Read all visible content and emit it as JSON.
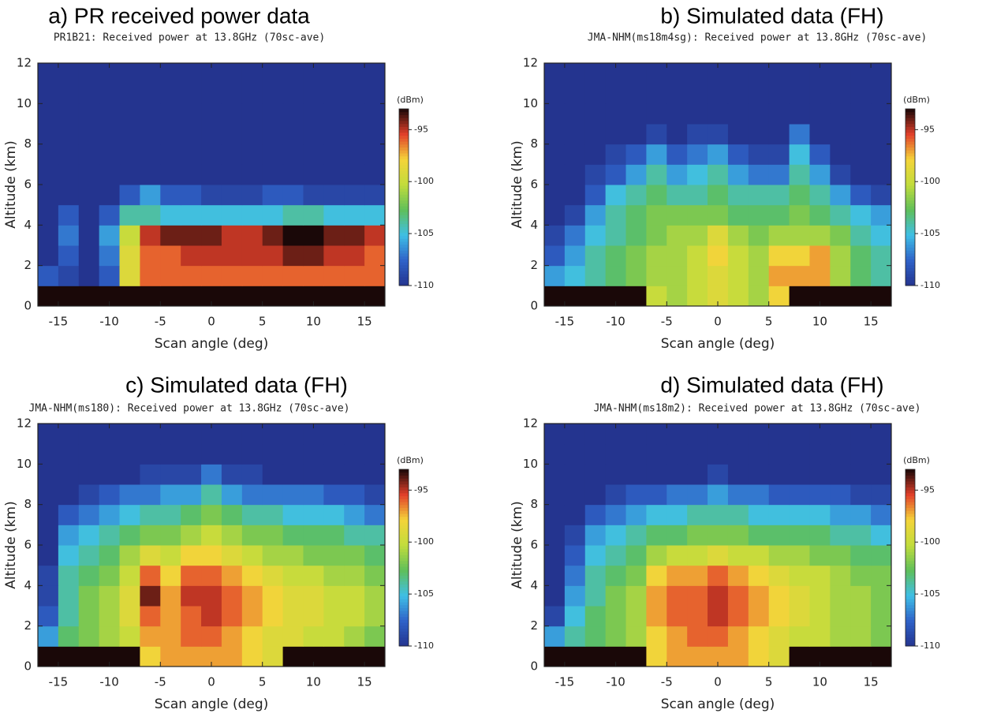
{
  "chart_data": [
    {
      "type": "heatmap",
      "title": "a) PR received power data",
      "subtitle": "PR1B21: Received power at 13.8GHz (70sc-ave)",
      "xlabel": "Scan angle (deg)",
      "ylabel": "Altitude (km)",
      "colorbar_label": "(dBm)",
      "xlim": [
        -17,
        17
      ],
      "xticks": [
        -15,
        -10,
        -5,
        0,
        5,
        10,
        15
      ],
      "ylim": [
        0,
        12
      ],
      "yticks": [
        0,
        2,
        4,
        6,
        8,
        10,
        12
      ],
      "clim": [
        -110,
        -93
      ],
      "cticks": [
        -110,
        -105,
        -100,
        -95
      ],
      "colormap": [
        "#24348f",
        "#2f62c8",
        "#3fbfe6",
        "#5fbf5a",
        "#c2dc3c",
        "#f4d43a",
        "#e2402a",
        "#1a0808"
      ],
      "x_edges": [
        -17,
        -15,
        -13,
        -11,
        -9,
        -7,
        -5,
        -3,
        -1,
        1,
        3,
        5,
        7,
        9,
        11,
        13,
        15,
        17
      ],
      "y_edges": [
        0,
        1,
        2,
        3,
        4,
        5,
        6,
        7,
        8,
        9,
        10,
        11,
        12
      ],
      "z": [
        [
          -92,
          -92,
          -92,
          -92,
          -92,
          -92,
          -92,
          -92,
          -92,
          -92,
          -92,
          -92,
          -92,
          -92,
          -92,
          -92,
          -92
        ],
        [
          -108,
          -109,
          -110,
          -108,
          -99,
          -96,
          -96,
          -96,
          -96,
          -96,
          -96,
          -96,
          -96,
          -96,
          -96,
          -96,
          -96
        ],
        [
          -110,
          -108,
          -110,
          -107,
          -99,
          -96,
          -96,
          -95,
          -95,
          -95,
          -95,
          -95,
          -94,
          -94,
          -95,
          -95,
          -96
        ],
        [
          -110,
          -107,
          -110,
          -106,
          -100,
          -95,
          -94,
          -94,
          -94,
          -95,
          -95,
          -94,
          -93,
          -93,
          -94,
          -94,
          -95
        ],
        [
          -111,
          -108,
          -111,
          -108,
          -104,
          -104,
          -105,
          -105,
          -105,
          -105,
          -105,
          -105,
          -104,
          -104,
          -105,
          -105,
          -105
        ],
        [
          -111,
          -111,
          -111,
          -111,
          -108,
          -106,
          -108,
          -108,
          -109,
          -109,
          -109,
          -108,
          -108,
          -109,
          -109,
          -109,
          -109
        ],
        [
          -111,
          -111,
          -111,
          -111,
          -111,
          -111,
          -111,
          -111,
          -111,
          -111,
          -111,
          -111,
          -111,
          -111,
          -111,
          -111,
          -111
        ],
        [
          -111,
          -111,
          -111,
          -111,
          -111,
          -111,
          -111,
          -111,
          -111,
          -111,
          -111,
          -111,
          -111,
          -111,
          -111,
          -111,
          -111
        ],
        [
          -111,
          -111,
          -111,
          -111,
          -111,
          -111,
          -111,
          -111,
          -111,
          -111,
          -111,
          -111,
          -111,
          -111,
          -111,
          -111,
          -111
        ],
        [
          -111,
          -111,
          -111,
          -111,
          -111,
          -111,
          -111,
          -111,
          -111,
          -111,
          -111,
          -111,
          -111,
          -111,
          -111,
          -111,
          -111
        ],
        [
          -111,
          -111,
          -111,
          -111,
          -111,
          -111,
          -111,
          -111,
          -111,
          -111,
          -111,
          -111,
          -111,
          -111,
          -111,
          -111,
          -111
        ],
        [
          -111,
          -111,
          -111,
          -111,
          -111,
          -111,
          -111,
          -111,
          -111,
          -111,
          -111,
          -111,
          -111,
          -111,
          -111,
          -111,
          -111
        ]
      ]
    },
    {
      "type": "heatmap",
      "title": "b) Simulated data (FH)",
      "subtitle": "JMA-NHM(ms18m4sg): Received power at 13.8GHz (70sc-ave)",
      "xlabel": "Scan angle (deg)",
      "ylabel": "Altitude (km)",
      "colorbar_label": "(dBm)",
      "xlim": [
        -17,
        17
      ],
      "xticks": [
        -15,
        -10,
        -5,
        0,
        5,
        10,
        15
      ],
      "ylim": [
        0,
        12
      ],
      "yticks": [
        0,
        2,
        4,
        6,
        8,
        10,
        12
      ],
      "clim": [
        -110,
        -93
      ],
      "cticks": [
        -110,
        -105,
        -100,
        -95
      ],
      "colormap": [
        "#24348f",
        "#2f62c8",
        "#3fbfe6",
        "#5fbf5a",
        "#c2dc3c",
        "#f4d43a",
        "#e2402a",
        "#1a0808"
      ],
      "x_edges": [
        -17,
        -15,
        -13,
        -11,
        -9,
        -7,
        -5,
        -3,
        -1,
        1,
        3,
        5,
        7,
        9,
        11,
        13,
        15,
        17
      ],
      "y_edges": [
        0,
        1,
        2,
        3,
        4,
        5,
        6,
        7,
        8,
        9,
        10,
        11,
        12
      ],
      "z": [
        [
          -92,
          -92,
          -92,
          -92,
          -92,
          -100,
          -101,
          -100,
          -99,
          -100,
          -101,
          -98,
          -92,
          -92,
          -92,
          -92,
          -92
        ],
        [
          -106,
          -105,
          -104,
          -103,
          -102,
          -101,
          -101,
          -100,
          -99,
          -100,
          -101,
          -97,
          -97,
          -97,
          -101,
          -103,
          -104
        ],
        [
          -108,
          -106,
          -104,
          -103,
          -102,
          -101,
          -101,
          -100,
          -98,
          -100,
          -101,
          -98,
          -98,
          -97,
          -101,
          -103,
          -104
        ],
        [
          -109,
          -107,
          -105,
          -104,
          -103,
          -102,
          -101,
          -101,
          -99,
          -101,
          -102,
          -101,
          -101,
          -101,
          -102,
          -104,
          -105
        ],
        [
          -110,
          -109,
          -106,
          -104,
          -103,
          -102,
          -102,
          -102,
          -102,
          -103,
          -103,
          -103,
          -102,
          -103,
          -104,
          -105,
          -106
        ],
        [
          -111,
          -110,
          -108,
          -105,
          -104,
          -103,
          -104,
          -104,
          -103,
          -104,
          -104,
          -104,
          -103,
          -104,
          -106,
          -108,
          -109
        ],
        [
          -111,
          -111,
          -109,
          -108,
          -106,
          -104,
          -106,
          -105,
          -104,
          -106,
          -107,
          -107,
          -104,
          -106,
          -109,
          -110,
          -111
        ],
        [
          -111,
          -111,
          -110,
          -109,
          -108,
          -106,
          -108,
          -107,
          -106,
          -108,
          -109,
          -109,
          -105,
          -108,
          -110,
          -111,
          -111
        ],
        [
          -111,
          -111,
          -111,
          -111,
          -110,
          -109,
          -110,
          -109,
          -109,
          -110,
          -110,
          -110,
          -107,
          -110,
          -111,
          -111,
          -111
        ],
        [
          -111,
          -111,
          -111,
          -111,
          -111,
          -111,
          -111,
          -111,
          -111,
          -111,
          -111,
          -111,
          -111,
          -111,
          -111,
          -111,
          -111
        ],
        [
          -111,
          -111,
          -111,
          -111,
          -111,
          -111,
          -111,
          -111,
          -111,
          -111,
          -111,
          -111,
          -111,
          -111,
          -111,
          -111,
          -111
        ],
        [
          -111,
          -111,
          -111,
          -111,
          -111,
          -111,
          -111,
          -111,
          -111,
          -111,
          -111,
          -111,
          -111,
          -111,
          -111,
          -111,
          -111
        ]
      ]
    },
    {
      "type": "heatmap",
      "title": "c) Simulated data (FH)",
      "subtitle": "JMA-NHM(ms180): Received power at 13.8GHz (70sc-ave)",
      "xlabel": "Scan angle (deg)",
      "ylabel": "Altitude (km)",
      "colorbar_label": "(dBm)",
      "xlim": [
        -17,
        17
      ],
      "xticks": [
        -15,
        -10,
        -5,
        0,
        5,
        10,
        15
      ],
      "ylim": [
        0,
        12
      ],
      "yticks": [
        0,
        2,
        4,
        6,
        8,
        10,
        12
      ],
      "clim": [
        -110,
        -93
      ],
      "cticks": [
        -110,
        -105,
        -100,
        -95
      ],
      "colormap": [
        "#24348f",
        "#2f62c8",
        "#3fbfe6",
        "#5fbf5a",
        "#c2dc3c",
        "#f4d43a",
        "#e2402a",
        "#1a0808"
      ],
      "x_edges": [
        -17,
        -15,
        -13,
        -11,
        -9,
        -7,
        -5,
        -3,
        -1,
        1,
        3,
        5,
        7,
        9,
        11,
        13,
        15,
        17
      ],
      "y_edges": [
        0,
        1,
        2,
        3,
        4,
        5,
        6,
        7,
        8,
        9,
        10,
        11,
        12
      ],
      "z": [
        [
          -92,
          -92,
          -92,
          -92,
          -92,
          -98,
          -97,
          -97,
          -97,
          -97,
          -98,
          -99,
          -92,
          -92,
          -92,
          -92,
          -92
        ],
        [
          -106,
          -103,
          -102,
          -101,
          -100,
          -97,
          -97,
          -96,
          -96,
          -97,
          -98,
          -99,
          -99,
          -100,
          -100,
          -101,
          -102
        ],
        [
          -108,
          -104,
          -102,
          -101,
          -99,
          -96,
          -97,
          -96,
          -95,
          -96,
          -97,
          -98,
          -99,
          -99,
          -100,
          -100,
          -101
        ],
        [
          -109,
          -104,
          -102,
          -101,
          -99,
          -94,
          -97,
          -95,
          -95,
          -96,
          -97,
          -98,
          -99,
          -99,
          -100,
          -100,
          -101
        ],
        [
          -109,
          -104,
          -103,
          -102,
          -100,
          -96,
          -98,
          -96,
          -96,
          -97,
          -98,
          -99,
          -100,
          -100,
          -101,
          -101,
          -102
        ],
        [
          -110,
          -105,
          -104,
          -103,
          -101,
          -99,
          -100,
          -98,
          -98,
          -99,
          -100,
          -101,
          -101,
          -102,
          -102,
          -102,
          -103
        ],
        [
          -110,
          -106,
          -105,
          -104,
          -103,
          -102,
          -102,
          -101,
          -100,
          -101,
          -102,
          -102,
          -103,
          -103,
          -103,
          -104,
          -104
        ],
        [
          -111,
          -108,
          -107,
          -106,
          -105,
          -104,
          -104,
          -103,
          -102,
          -103,
          -104,
          -104,
          -105,
          -105,
          -105,
          -106,
          -107
        ],
        [
          -111,
          -110,
          -109,
          -108,
          -107,
          -107,
          -106,
          -106,
          -104,
          -106,
          -107,
          -107,
          -107,
          -107,
          -108,
          -108,
          -109
        ],
        [
          -111,
          -111,
          -110,
          -110,
          -110,
          -109,
          -109,
          -109,
          -107,
          -109,
          -109,
          -110,
          -110,
          -110,
          -110,
          -110,
          -111
        ],
        [
          -111,
          -111,
          -111,
          -111,
          -111,
          -111,
          -111,
          -111,
          -110,
          -110,
          -111,
          -111,
          -111,
          -111,
          -111,
          -110,
          -111
        ],
        [
          -111,
          -111,
          -111,
          -111,
          -111,
          -111,
          -111,
          -111,
          -111,
          -111,
          -111,
          -111,
          -111,
          -111,
          -111,
          -111,
          -111
        ]
      ]
    },
    {
      "type": "heatmap",
      "title": "d) Simulated data (FH)",
      "subtitle": "JMA-NHM(ms18m2): Received power at 13.8GHz (70sc-ave)",
      "xlabel": "Scan angle (deg)",
      "ylabel": "Altitude (km)",
      "colorbar_label": "(dBm)",
      "xlim": [
        -17,
        17
      ],
      "xticks": [
        -15,
        -10,
        -5,
        0,
        5,
        10,
        15
      ],
      "ylim": [
        0,
        12
      ],
      "yticks": [
        0,
        2,
        4,
        6,
        8,
        10,
        12
      ],
      "clim": [
        -110,
        -93
      ],
      "cticks": [
        -110,
        -105,
        -100,
        -95
      ],
      "colormap": [
        "#24348f",
        "#2f62c8",
        "#3fbfe6",
        "#5fbf5a",
        "#c2dc3c",
        "#f4d43a",
        "#e2402a",
        "#1a0808"
      ],
      "x_edges": [
        -17,
        -15,
        -13,
        -11,
        -9,
        -7,
        -5,
        -3,
        -1,
        1,
        3,
        5,
        7,
        9,
        11,
        13,
        15,
        17
      ],
      "y_edges": [
        0,
        1,
        2,
        3,
        4,
        5,
        6,
        7,
        8,
        9,
        10,
        11,
        12
      ],
      "z": [
        [
          -92,
          -92,
          -92,
          -92,
          -92,
          -98,
          -97,
          -97,
          -97,
          -97,
          -98,
          -99,
          -92,
          -92,
          -92,
          -92,
          -92
        ],
        [
          -106,
          -104,
          -103,
          -102,
          -101,
          -98,
          -97,
          -96,
          -96,
          -97,
          -98,
          -99,
          -100,
          -100,
          -101,
          -101,
          -102
        ],
        [
          -109,
          -105,
          -103,
          -102,
          -101,
          -97,
          -96,
          -96,
          -95,
          -96,
          -97,
          -98,
          -99,
          -100,
          -101,
          -101,
          -102
        ],
        [
          -110,
          -106,
          -104,
          -102,
          -101,
          -97,
          -96,
          -96,
          -95,
          -96,
          -97,
          -98,
          -99,
          -100,
          -101,
          -101,
          -102
        ],
        [
          -110,
          -107,
          -104,
          -103,
          -102,
          -98,
          -97,
          -97,
          -96,
          -97,
          -98,
          -99,
          -100,
          -100,
          -101,
          -102,
          -102
        ],
        [
          -111,
          -108,
          -105,
          -104,
          -103,
          -101,
          -100,
          -100,
          -99,
          -100,
          -100,
          -101,
          -101,
          -102,
          -102,
          -103,
          -103
        ],
        [
          -111,
          -109,
          -106,
          -105,
          -104,
          -103,
          -103,
          -102,
          -102,
          -102,
          -103,
          -103,
          -103,
          -103,
          -104,
          -104,
          -105
        ],
        [
          -111,
          -110,
          -108,
          -107,
          -106,
          -105,
          -105,
          -104,
          -104,
          -104,
          -105,
          -105,
          -105,
          -105,
          -106,
          -106,
          -107
        ],
        [
          -111,
          -111,
          -110,
          -109,
          -108,
          -108,
          -107,
          -107,
          -106,
          -107,
          -107,
          -108,
          -108,
          -108,
          -108,
          -109,
          -109
        ],
        [
          -111,
          -111,
          -111,
          -111,
          -111,
          -110,
          -110,
          -110,
          -109,
          -110,
          -110,
          -111,
          -111,
          -111,
          -111,
          -110,
          -111
        ],
        [
          -111,
          -111,
          -111,
          -111,
          -111,
          -111,
          -111,
          -111,
          -111,
          -111,
          -111,
          -111,
          -111,
          -111,
          -111,
          -111,
          -111
        ],
        [
          -111,
          -111,
          -111,
          -111,
          -111,
          -111,
          -111,
          -111,
          -111,
          -111,
          -111,
          -111,
          -111,
          -111,
          -111,
          -111,
          -111
        ]
      ]
    }
  ]
}
